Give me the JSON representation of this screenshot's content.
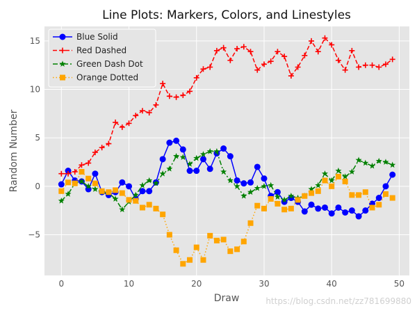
{
  "chart_data": {
    "type": "line",
    "title": "Line Plots: Markers, Colors, and Linestyles",
    "xlabel": "Draw",
    "ylabel": "Random Number",
    "xlim": [
      -2.5,
      51.5
    ],
    "ylim": [
      -9.2,
      16.5
    ],
    "xticks": [
      0,
      10,
      20,
      30,
      40,
      50
    ],
    "yticks": [
      -5,
      0,
      5,
      10,
      15
    ],
    "grid": true,
    "legend_position": "top-left",
    "x": [
      0,
      1,
      2,
      3,
      4,
      5,
      6,
      7,
      8,
      9,
      10,
      11,
      12,
      13,
      14,
      15,
      16,
      17,
      18,
      19,
      20,
      21,
      22,
      23,
      24,
      25,
      26,
      27,
      28,
      29,
      30,
      31,
      32,
      33,
      34,
      35,
      36,
      37,
      38,
      39,
      40,
      41,
      42,
      43,
      44,
      45,
      46,
      47,
      48,
      49
    ],
    "series": [
      {
        "name": "Blue Solid",
        "color": "#0000ff",
        "linestyle": "solid",
        "marker": "circle",
        "values": [
          0.2,
          1.6,
          0.6,
          0.5,
          -0.3,
          1.3,
          -0.6,
          -0.9,
          -0.6,
          0.4,
          0.0,
          -1.3,
          -0.5,
          -0.5,
          0.4,
          2.8,
          4.5,
          4.7,
          3.8,
          1.6,
          1.6,
          2.8,
          1.8,
          3.4,
          3.9,
          3.1,
          0.6,
          0.3,
          0.4,
          2.0,
          0.8,
          -1.0,
          -0.6,
          -1.6,
          -1.2,
          -1.6,
          -2.6,
          -1.9,
          -2.3,
          -2.2,
          -2.8,
          -2.2,
          -2.7,
          -2.5,
          -3.1,
          -2.5,
          -1.8,
          -1.2,
          0.0,
          1.2
        ]
      },
      {
        "name": "Red Dashed",
        "color": "#ff0000",
        "linestyle": "dashed",
        "marker": "plus",
        "values": [
          1.3,
          1.3,
          1.5,
          2.2,
          2.4,
          3.5,
          4.0,
          4.4,
          6.6,
          6.1,
          6.5,
          7.3,
          7.8,
          7.6,
          8.4,
          10.6,
          9.3,
          9.2,
          9.4,
          9.8,
          11.2,
          12.1,
          12.3,
          14.0,
          14.3,
          13.0,
          14.2,
          14.4,
          13.9,
          12.0,
          12.6,
          12.9,
          13.9,
          13.4,
          11.4,
          12.3,
          13.5,
          15.0,
          13.9,
          15.3,
          14.6,
          13.0,
          12.0,
          14.0,
          12.3,
          12.5,
          12.5,
          12.3,
          12.6,
          13.1
        ]
      },
      {
        "name": "Green Dash Dot",
        "color": "#008000",
        "linestyle": "dashdot",
        "marker": "star",
        "values": [
          -1.5,
          -0.8,
          0.3,
          0.5,
          0.0,
          -0.3,
          -0.6,
          -0.7,
          -1.3,
          -2.4,
          -1.6,
          -0.9,
          0.1,
          0.6,
          0.3,
          1.3,
          1.8,
          3.1,
          3.0,
          2.3,
          2.9,
          3.3,
          3.6,
          3.6,
          1.5,
          0.6,
          0.0,
          -1.0,
          -0.6,
          -0.2,
          0.0,
          0.1,
          -1.1,
          -1.4,
          -1.0,
          -1.2,
          -1.0,
          -0.3,
          0.1,
          1.3,
          0.6,
          1.6,
          1.0,
          1.5,
          2.7,
          2.4,
          2.1,
          2.6,
          2.5,
          2.2
        ]
      },
      {
        "name": "Orange Dotted",
        "color": "#ffa500",
        "linestyle": "dotted",
        "marker": "square",
        "values": [
          -0.5,
          0.4,
          0.3,
          1.5,
          0.8,
          0.3,
          -0.5,
          -0.6,
          -0.4,
          -0.7,
          -1.4,
          -1.5,
          -2.2,
          -1.9,
          -2.3,
          -2.9,
          -5.0,
          -6.6,
          -8.0,
          -7.6,
          -6.3,
          -7.6,
          -5.1,
          -5.6,
          -5.5,
          -6.7,
          -6.5,
          -5.7,
          -3.8,
          -2.0,
          -2.3,
          -1.3,
          -1.8,
          -2.4,
          -2.3,
          -1.4,
          -1.0,
          -0.7,
          -0.5,
          0.6,
          0.0,
          1.0,
          0.5,
          -0.9,
          -0.9,
          -0.6,
          -2.2,
          -1.9,
          -0.8,
          -1.2
        ]
      }
    ]
  },
  "watermark": "https://blog.csdn.net/zz781699880"
}
